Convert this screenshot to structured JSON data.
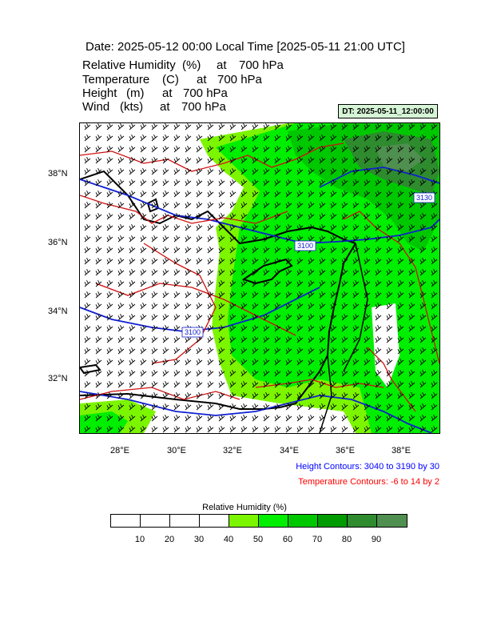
{
  "header": {
    "title": "Date: 2025-05-12  00:00 Local Time [2025-05-11  21:00 UTC]",
    "variables": [
      {
        "name": "Relative Humidity",
        "unit": "(%)",
        "at": "at",
        "level": "700 hPa"
      },
      {
        "name": "Temperature",
        "unit": "(C)",
        "at": "at",
        "level": "700 hPa"
      },
      {
        "name": "Height",
        "unit": "(m)",
        "at": "at",
        "level": "700 hPa"
      },
      {
        "name": "Wind",
        "unit": "(kts)",
        "at": "at",
        "level": "700 hPa"
      }
    ],
    "dt_badge": "DT: 2025-05-11_12:00:00"
  },
  "map": {
    "lat_labels": [
      "38°N",
      "36°N",
      "34°N",
      "32°N"
    ],
    "lon_labels": [
      "28°E",
      "30°E",
      "32°E",
      "34°E",
      "36°E",
      "38°E"
    ],
    "height_contour_labels": [
      "3100",
      "3100",
      "3130"
    ],
    "colors": {
      "height_contours": "#1020d0",
      "temperature_contours": "#d01010",
      "coastline": "#000000",
      "wind_barbs": "#000000"
    }
  },
  "legend": {
    "height_note": "Height Contours: 3040 to 3190 by 30",
    "temperature_note": "Temperature Contours: -6 to 14 by 2",
    "height_note_color": "#0000ff",
    "temperature_note_color": "#ff0000"
  },
  "colorbar": {
    "title": "Relative Humidity  (%)",
    "colors": [
      "#ffffff",
      "#ffffff",
      "#ffffff",
      "#ffffff",
      "#7cf500",
      "#00ee00",
      "#00c800",
      "#009b00",
      "#2e8b2e",
      "#4f8f4f"
    ],
    "tick_labels": [
      "10",
      "20",
      "30",
      "40",
      "50",
      "60",
      "70",
      "80",
      "90"
    ]
  }
}
